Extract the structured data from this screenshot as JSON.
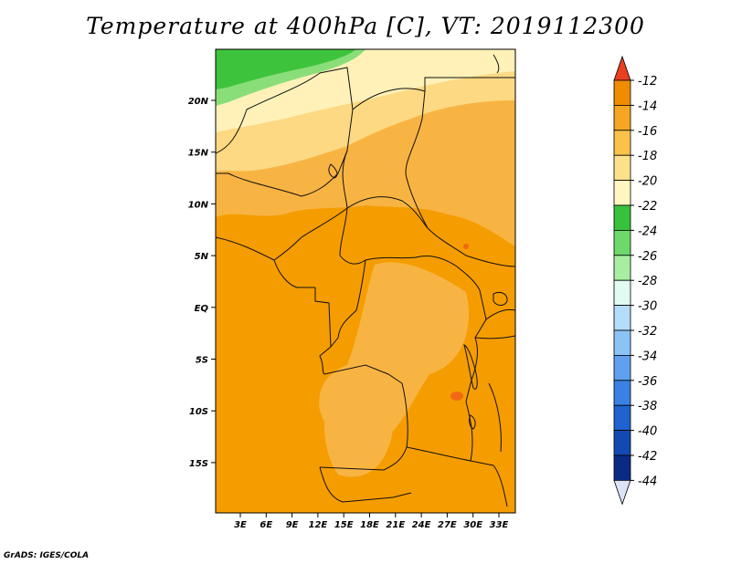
{
  "title": "Temperature at 400hPa [C], VT: 2019112300",
  "credit": "GrADS: IGES/COLA",
  "lat_ticks": [
    "20N",
    "15N",
    "10N",
    "5N",
    "EQ",
    "5S",
    "10S",
    "15S"
  ],
  "lon_ticks": [
    "3E",
    "6E",
    "9E",
    "12E",
    "15E",
    "18E",
    "21E",
    "24E",
    "27E",
    "30E",
    "33E"
  ],
  "colorbar": {
    "labels": [
      "-12",
      "-14",
      "-16",
      "-18",
      "-20",
      "-22",
      "-24",
      "-26",
      "-28",
      "-30",
      "-32",
      "-34",
      "-36",
      "-38",
      "-40",
      "-42",
      "-44"
    ],
    "colors": [
      "#e8401e",
      "#f08c00",
      "#f5a623",
      "#f9c24a",
      "#fde08a",
      "#fff6c0",
      "#37c23c",
      "#6dd96b",
      "#a8eea2",
      "#e0fbef",
      "#b4dcfb",
      "#8cc3f5",
      "#5fa1ee",
      "#3a81e3",
      "#1f62d0",
      "#1349b2",
      "#0a2a86"
    ],
    "low_end": "#dde4f7"
  },
  "map_colors": {
    "base": "#f59d00",
    "light": "#f8b443",
    "pale": "#fcd982",
    "cream": "#fff1b8",
    "green": "#3ec43c",
    "lightgreen": "#8ade7a",
    "hot": "#f06a14"
  }
}
